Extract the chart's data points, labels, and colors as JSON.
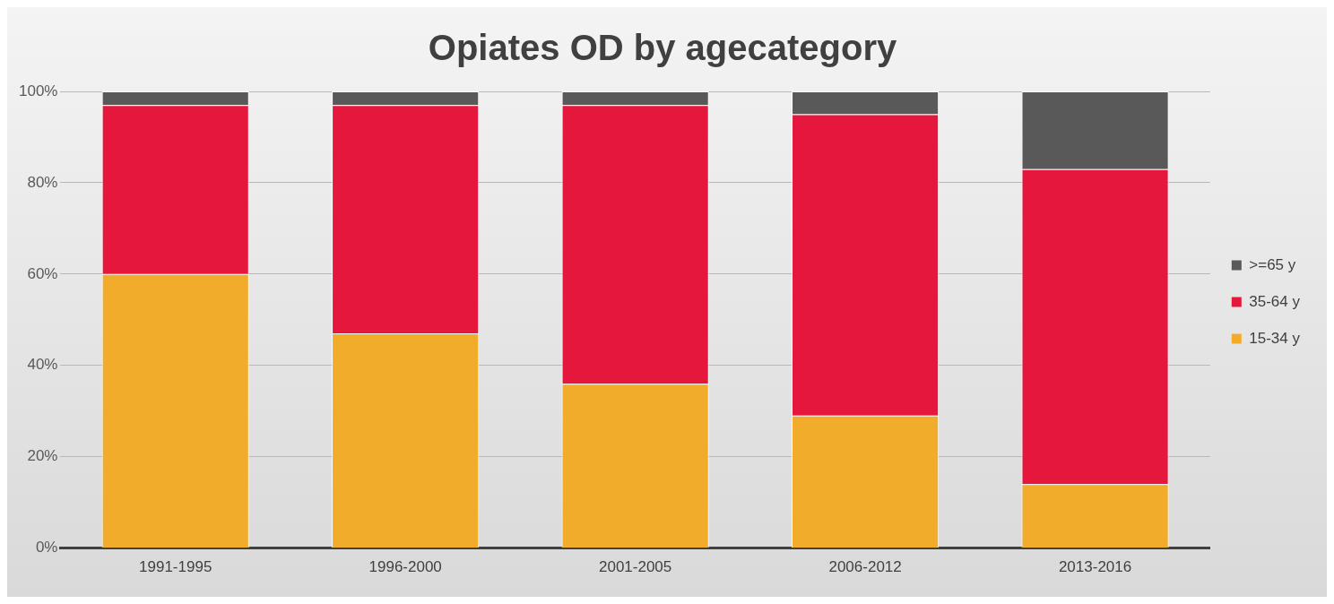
{
  "chart_data": {
    "type": "bar",
    "title": "Opiates OD by agecategory",
    "stacked": true,
    "categories": [
      "1991-1995",
      "1996-2000",
      "2001-2005",
      "2006-2012",
      "2013-2016"
    ],
    "series": [
      {
        "name": "15-34 y",
        "color": "#f2ac2c",
        "values": [
          60,
          47,
          36,
          29,
          14
        ]
      },
      {
        "name": "35-64 y",
        "color": "#e5173d",
        "values": [
          37,
          50,
          61,
          66,
          69
        ]
      },
      {
        "name": ">=65 y",
        "color": "#595959",
        "values": [
          3,
          3,
          3,
          5,
          17
        ]
      }
    ],
    "ylim": [
      0,
      100
    ],
    "yticks": [
      {
        "value": 0,
        "label": "0%"
      },
      {
        "value": 20,
        "label": "20%"
      },
      {
        "value": 40,
        "label": "40%"
      },
      {
        "value": 60,
        "label": "60%"
      },
      {
        "value": 80,
        "label": "80%"
      },
      {
        "value": 100,
        "label": "100%"
      }
    ],
    "grid": "y",
    "legend": "right"
  }
}
